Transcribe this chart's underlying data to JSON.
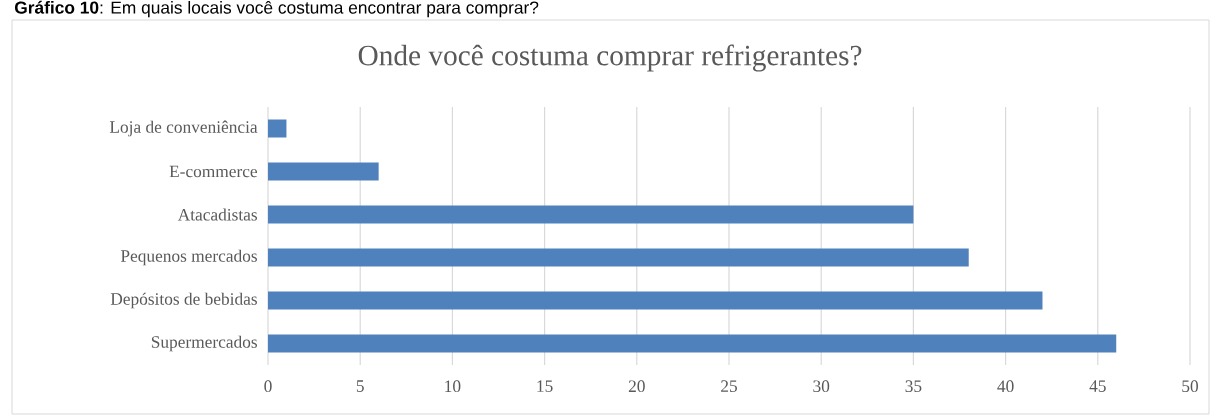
{
  "chart_data": {
    "type": "bar",
    "orientation": "horizontal",
    "title": "Onde você costuma comprar refrigerantes?",
    "annotations": [
      "**Gráfico 10**: Em quais locais você costuma encontrar para comprar?"
    ],
    "categories": [
      "Loja de conveniência",
      "E-commerce",
      "Atacadistas",
      "Pequenos mercados",
      "Depósitos de bebidas",
      "Supermercados"
    ],
    "values": [
      1,
      6,
      35,
      38,
      42,
      46
    ],
    "color": "#4f81bd",
    "xlim": [
      0,
      50
    ],
    "xticks": [
      0,
      5,
      10,
      15,
      20,
      25,
      30,
      35,
      40,
      45,
      50
    ],
    "grid": "x"
  }
}
